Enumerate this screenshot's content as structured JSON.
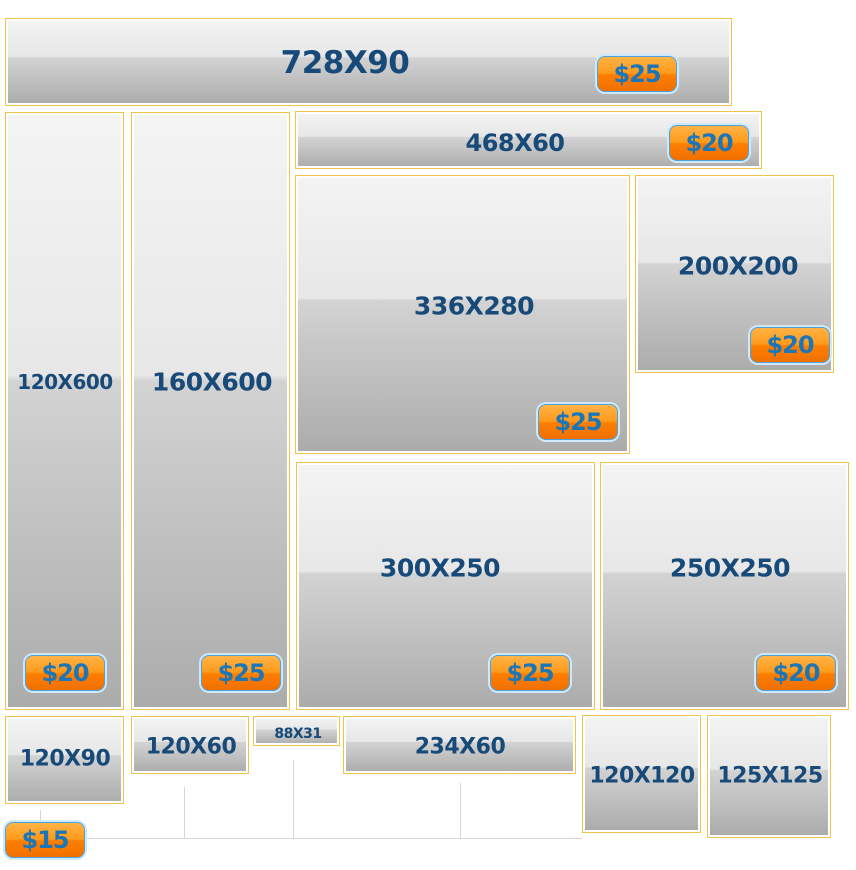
{
  "ads": [
    {
      "label": "728X90",
      "price": "$25"
    },
    {
      "label": "120X600",
      "price": "$20"
    },
    {
      "label": "160X600",
      "price": "$25"
    },
    {
      "label": "468X60",
      "price": "$20"
    },
    {
      "label": "336X280",
      "price": "$25"
    },
    {
      "label": "200X200",
      "price": "$20"
    },
    {
      "label": "300X250",
      "price": "$25"
    },
    {
      "label": "250X250",
      "price": "$20"
    },
    {
      "label": "120X90"
    },
    {
      "label": "120X60"
    },
    {
      "label": "88X31"
    },
    {
      "label": "234X60"
    },
    {
      "label": "120X120"
    },
    {
      "label": "125X125"
    }
  ],
  "small_ads_price": "$15"
}
